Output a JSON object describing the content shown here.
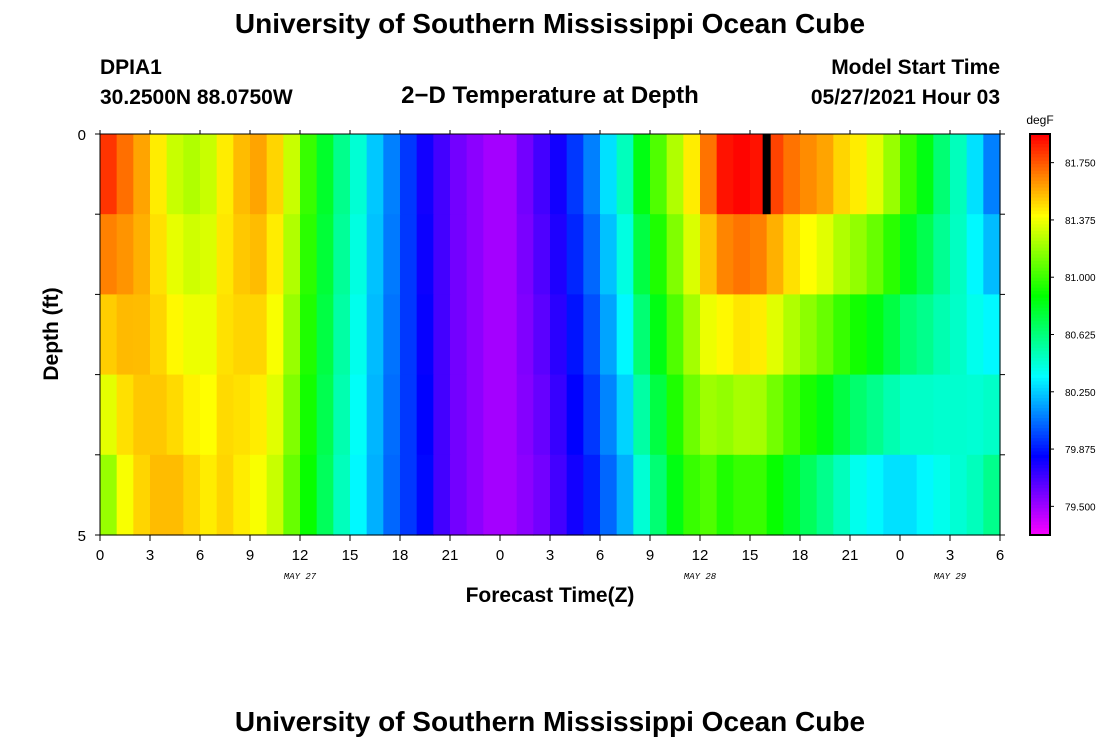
{
  "header": {
    "title": "University of Southern Mississippi Ocean Cube",
    "station_id": "DPIA1",
    "coordinates": "30.2500N  88.0750W",
    "subtitle": "2−D Temperature at Depth",
    "model_start_label": "Model Start Time",
    "model_start_value": "05/27/2021 Hour 03"
  },
  "footer": {
    "title": "University of Southern Mississippi Ocean Cube"
  },
  "chart_data": {
    "type": "heatmap",
    "xlabel": "Forecast Time(Z)",
    "ylabel": "Depth (ft)",
    "x_hours_range": [
      0,
      54
    ],
    "x_tick_labels": [
      "0",
      "3",
      "6",
      "9",
      "12",
      "15",
      "18",
      "21",
      "0",
      "3",
      "6",
      "9",
      "12",
      "15",
      "18",
      "21",
      "0",
      "3",
      "6"
    ],
    "date_labels": [
      {
        "label": "MAY 27",
        "hour": 12
      },
      {
        "label": "MAY 28",
        "hour": 36
      },
      {
        "label": "MAY 29",
        "hour": 51
      }
    ],
    "y_tick_labels": [
      "0",
      "5"
    ],
    "ylim": [
      0,
      5
    ],
    "depth_rows": [
      0,
      1,
      2,
      3,
      4
    ],
    "colorbar": {
      "unit": "degF",
      "min": 79.3125,
      "max": 81.9375,
      "tick_values": [
        81.75,
        81.375,
        81.0,
        80.625,
        80.25,
        79.875,
        79.5
      ],
      "tick_labels": [
        "81.750",
        "81.375",
        "81.000",
        "80.625",
        "80.250",
        "79.875",
        "79.500"
      ]
    },
    "hourly_surface_temperature_degF": [
      81.83,
      81.71,
      81.6,
      81.45,
      81.3,
      81.25,
      81.3,
      81.45,
      81.55,
      81.6,
      81.5,
      81.3,
      81.0,
      80.8,
      80.6,
      80.45,
      80.25,
      80.1,
      79.95,
      79.8,
      79.7,
      79.6,
      79.55,
      79.5,
      79.5,
      79.6,
      79.7,
      79.8,
      79.95,
      80.1,
      80.3,
      80.5,
      80.85,
      81.05,
      81.25,
      81.45,
      81.7,
      81.9,
      81.93,
      81.9,
      81.8,
      81.7,
      81.65,
      81.6,
      81.5,
      81.45,
      81.35,
      81.2,
      81.0,
      80.85,
      80.65,
      80.5,
      80.3,
      80.1
    ],
    "hourly_bottom_temperature_degF": [
      81.2,
      81.4,
      81.5,
      81.55,
      81.55,
      81.5,
      81.45,
      81.5,
      81.45,
      81.4,
      81.3,
      81.1,
      80.9,
      80.7,
      80.5,
      80.35,
      80.2,
      80.05,
      79.95,
      79.85,
      79.7,
      79.6,
      79.55,
      79.5,
      79.5,
      79.55,
      79.6,
      79.7,
      79.8,
      79.9,
      80.05,
      80.2,
      80.45,
      80.65,
      80.85,
      81.0,
      81.05,
      80.95,
      81.0,
      81.0,
      80.9,
      80.8,
      80.7,
      80.6,
      80.5,
      80.4,
      80.35,
      80.3,
      80.3,
      80.35,
      80.4,
      80.45,
      80.5,
      80.6
    ],
    "black_marker_forecast_hour": 40
  }
}
